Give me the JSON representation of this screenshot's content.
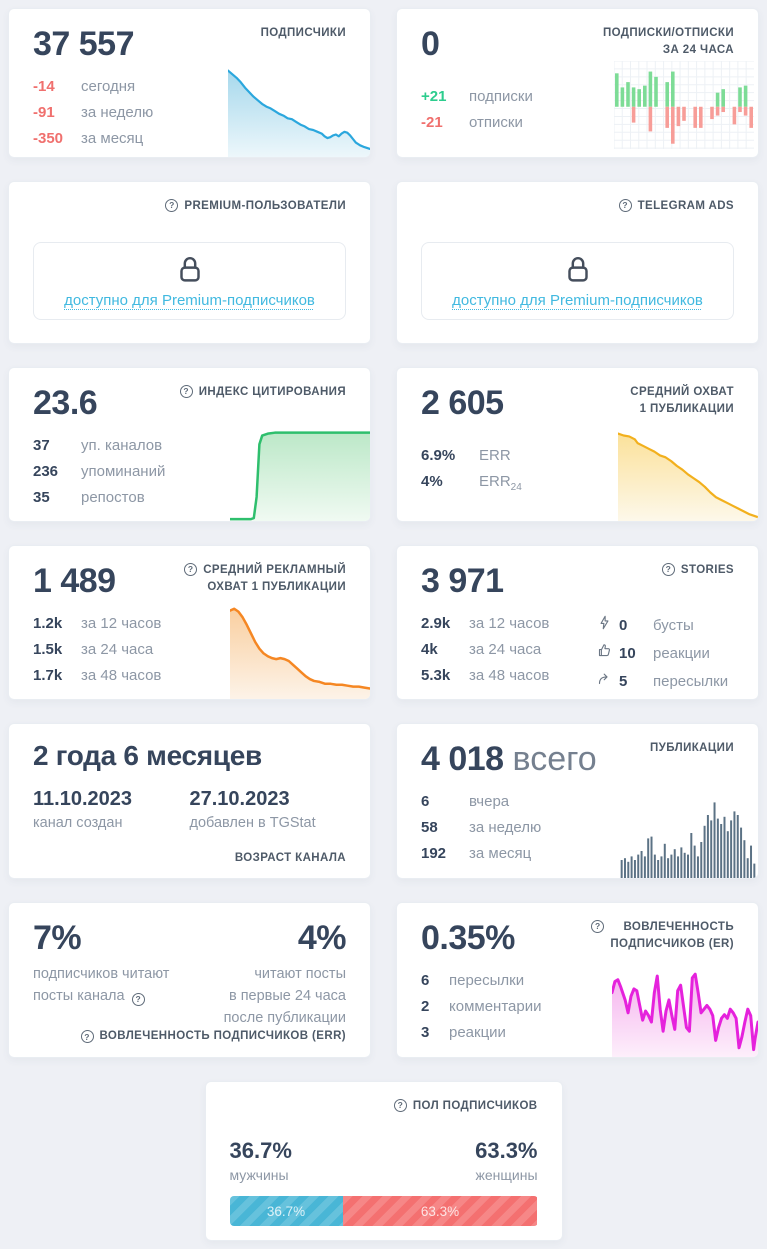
{
  "cards": {
    "subscribers": {
      "title": "ПОДПИСЧИКИ",
      "value": "37 557",
      "stats": [
        {
          "value": "-14",
          "label": "сегодня"
        },
        {
          "value": "-91",
          "label": "за неделю"
        },
        {
          "value": "-350",
          "label": "за месяц"
        }
      ],
      "chart": {
        "type": "area",
        "line": "#2ba7dd",
        "stroke": 2.2,
        "fill_top": "#a6d8ec",
        "fill_bottom": "#edf7fb",
        "points": [
          [
            0,
            4
          ],
          [
            3,
            8
          ],
          [
            6,
            12
          ],
          [
            9,
            17
          ],
          [
            12,
            23
          ],
          [
            15,
            28
          ],
          [
            18,
            33
          ],
          [
            21,
            37
          ],
          [
            24,
            41
          ],
          [
            27,
            44
          ],
          [
            30,
            46
          ],
          [
            33,
            49
          ],
          [
            36,
            52
          ],
          [
            39,
            54
          ],
          [
            42,
            57
          ],
          [
            45,
            58
          ],
          [
            48,
            61
          ],
          [
            51,
            64
          ],
          [
            54,
            66
          ],
          [
            57,
            69
          ],
          [
            60,
            70
          ],
          [
            63,
            72
          ],
          [
            66,
            74
          ],
          [
            68,
            77
          ],
          [
            70,
            79
          ],
          [
            72,
            78
          ],
          [
            74,
            76
          ],
          [
            76,
            75
          ],
          [
            78,
            77
          ],
          [
            80,
            74
          ],
          [
            82,
            72
          ],
          [
            84,
            73
          ],
          [
            86,
            76
          ],
          [
            88,
            80
          ],
          [
            90,
            84
          ],
          [
            93,
            87
          ],
          [
            96,
            89
          ],
          [
            100,
            91
          ]
        ]
      }
    },
    "subs_unsubs": {
      "title_line1": "ПОДПИСКИ/ОТПИСКИ",
      "title_line2": "ЗА 24 ЧАСА",
      "value": "0",
      "stats": [
        {
          "value": "+21",
          "label": "подписки"
        },
        {
          "value": "-21",
          "label": "отписки"
        }
      ],
      "chart": {
        "type": "updown",
        "baseline": 52,
        "up_color": "#7ddc96",
        "down_color": "#f79d98",
        "grid_color": "#edf1f5",
        "bars": [
          [
            38,
            0
          ],
          [
            22,
            0
          ],
          [
            28,
            0
          ],
          [
            22,
            18
          ],
          [
            20,
            0
          ],
          [
            24,
            0
          ],
          [
            40,
            28
          ],
          [
            34,
            0
          ],
          [
            0,
            0
          ],
          [
            28,
            24
          ],
          [
            40,
            42
          ],
          [
            0,
            22
          ],
          [
            0,
            16
          ],
          [
            0,
            0
          ],
          [
            0,
            24
          ],
          [
            0,
            24
          ],
          [
            0,
            0
          ],
          [
            0,
            14
          ],
          [
            16,
            10
          ],
          [
            20,
            6
          ],
          [
            0,
            0
          ],
          [
            0,
            20
          ],
          [
            22,
            6
          ],
          [
            24,
            10
          ],
          [
            0,
            24
          ]
        ]
      }
    },
    "premium_users": {
      "title": "PREMIUM-ПОЛЬЗОВАТЕЛИ",
      "link": "доступно для Premium-подписчиков"
    },
    "telegram_ads": {
      "title": "TELEGRAM ADS",
      "link": "доступно для Premium-подписчиков"
    },
    "citation_index": {
      "title": "ИНДЕКС ЦИТИРОВАНИЯ",
      "value": "23.6",
      "stats": [
        {
          "value": "37",
          "label": "уп. каналов"
        },
        {
          "value": "236",
          "label": "упоминаний"
        },
        {
          "value": "35",
          "label": "репостов"
        }
      ],
      "chart": {
        "type": "area",
        "line": "#2ebf6d",
        "stroke": 2.5,
        "fill_top": "#bce8c8",
        "fill_bottom": "#f0faf2",
        "points": [
          [
            0,
            98
          ],
          [
            15,
            98
          ],
          [
            17,
            97
          ],
          [
            19,
            75
          ],
          [
            21,
            20
          ],
          [
            23,
            11
          ],
          [
            27,
            9
          ],
          [
            32,
            8
          ],
          [
            100,
            8
          ]
        ]
      }
    },
    "avg_reach": {
      "title_line1": "СРЕДНИЙ ОХВАТ",
      "title_line2": "1 ПУБЛИКАЦИИ",
      "value": "2 605",
      "stats": [
        {
          "value": "6.9%",
          "label": "ERR",
          "sub": ""
        },
        {
          "value": "4%",
          "label": "ERR",
          "sub": "24"
        }
      ],
      "chart": {
        "type": "area",
        "line": "#f2b01d",
        "stroke": 2.2,
        "fill_top": "#fbe19a",
        "fill_bottom": "#fdf8ea",
        "points": [
          [
            0,
            8
          ],
          [
            4,
            10
          ],
          [
            8,
            11
          ],
          [
            12,
            14
          ],
          [
            14,
            18
          ],
          [
            18,
            21
          ],
          [
            22,
            24
          ],
          [
            26,
            27
          ],
          [
            30,
            31
          ],
          [
            34,
            33
          ],
          [
            38,
            37
          ],
          [
            42,
            42
          ],
          [
            46,
            46
          ],
          [
            50,
            51
          ],
          [
            54,
            55
          ],
          [
            58,
            59
          ],
          [
            62,
            64
          ],
          [
            66,
            70
          ],
          [
            70,
            75
          ],
          [
            74,
            78
          ],
          [
            78,
            81
          ],
          [
            82,
            84
          ],
          [
            86,
            87
          ],
          [
            90,
            90
          ],
          [
            94,
            93
          ],
          [
            100,
            96
          ]
        ]
      }
    },
    "avg_ad_reach": {
      "title_line1": "СРЕДНИЙ РЕКЛАМНЫЙ",
      "title_line2": "ОХВАТ 1 ПУБЛИКАЦИИ",
      "value": "1 489",
      "stats": [
        {
          "value": "1.2k",
          "label": "за 12 часов"
        },
        {
          "value": "1.5k",
          "label": "за 24 часа"
        },
        {
          "value": "1.7k",
          "label": "за 48 часов"
        }
      ],
      "chart": {
        "type": "area",
        "line": "#f58723",
        "stroke": 2.5,
        "fill_top": "#f9cfa0",
        "fill_bottom": "#fdf3e8",
        "points": [
          [
            0,
            7
          ],
          [
            3,
            5
          ],
          [
            6,
            8
          ],
          [
            9,
            14
          ],
          [
            12,
            22
          ],
          [
            15,
            31
          ],
          [
            18,
            40
          ],
          [
            21,
            47
          ],
          [
            24,
            52
          ],
          [
            27,
            55
          ],
          [
            30,
            57
          ],
          [
            33,
            58
          ],
          [
            36,
            57
          ],
          [
            39,
            58
          ],
          [
            42,
            60
          ],
          [
            45,
            64
          ],
          [
            48,
            68
          ],
          [
            51,
            72
          ],
          [
            54,
            76
          ],
          [
            57,
            79
          ],
          [
            60,
            81
          ],
          [
            64,
            82
          ],
          [
            68,
            84
          ],
          [
            72,
            84
          ],
          [
            76,
            85
          ],
          [
            80,
            85
          ],
          [
            84,
            86
          ],
          [
            88,
            87
          ],
          [
            92,
            87
          ],
          [
            96,
            88
          ],
          [
            100,
            89
          ]
        ]
      }
    },
    "stories": {
      "title": "STORIES",
      "value": "3 971",
      "stats_left": [
        {
          "value": "2.9k",
          "label": "за 12 часов"
        },
        {
          "value": "4k",
          "label": "за 24 часа"
        },
        {
          "value": "5.3k",
          "label": "за 48 часов"
        }
      ],
      "stats_right": [
        {
          "icon": "boost-icon",
          "value": "0",
          "label": "бусты"
        },
        {
          "icon": "thumb-up-icon",
          "value": "10",
          "label": "реакции"
        },
        {
          "icon": "forward-icon",
          "value": "5",
          "label": "пересылки"
        }
      ]
    },
    "channel_age": {
      "value": "2 года 6 месяцев",
      "created_date": "11.10.2023",
      "created_label": "канал создан",
      "added_date": "27.10.2023",
      "added_label": "добавлен в TGStat",
      "footer": "ВОЗРАСТ КАНАЛА"
    },
    "publications": {
      "title": "ПУБЛИКАЦИИ",
      "value": "4 018",
      "value_suffix": "всего",
      "stats": [
        {
          "value": "6",
          "label": "вчера"
        },
        {
          "value": "58",
          "label": "за неделю"
        },
        {
          "value": "192",
          "label": "за месяц"
        }
      ],
      "chart": {
        "type": "bars",
        "color": "#5b7285",
        "values": [
          20,
          22,
          18,
          24,
          20,
          26,
          30,
          24,
          44,
          46,
          26,
          20,
          24,
          38,
          22,
          26,
          32,
          24,
          34,
          28,
          26,
          50,
          36,
          24,
          40,
          58,
          70,
          64,
          84,
          66,
          60,
          68,
          52,
          64,
          74,
          70,
          56,
          42,
          22,
          36,
          16
        ]
      }
    },
    "err": {
      "left_value": "7%",
      "left_label_line1": "подписчиков читают",
      "left_label_line2": "посты канала",
      "right_value": "4%",
      "right_label_lines": [
        "читают посты",
        "в первые 24 часа",
        "после публикации"
      ],
      "footer": "ВОВЛЕЧЕННОСТЬ ПОДПИСЧИКОВ (ERR)"
    },
    "er": {
      "title_line1": "ВОВЛЕЧЕННОСТЬ",
      "title_line2": "ПОДПИСЧИКОВ (ER)",
      "value": "0.35%",
      "stats": [
        {
          "value": "6",
          "label": "пересылки"
        },
        {
          "value": "2",
          "label": "комментарии"
        },
        {
          "value": "3",
          "label": "реакции"
        }
      ],
      "chart": {
        "type": "area",
        "line": "#e522dc",
        "stroke": 3,
        "fill_top": "#f5b2ee",
        "fill_bottom": "#fdeffb",
        "points": [
          [
            0,
            30
          ],
          [
            2,
            18
          ],
          [
            4,
            16
          ],
          [
            6,
            24
          ],
          [
            9,
            38
          ],
          [
            11,
            52
          ],
          [
            13,
            34
          ],
          [
            15,
            26
          ],
          [
            17,
            28
          ],
          [
            19,
            44
          ],
          [
            21,
            60
          ],
          [
            23,
            50
          ],
          [
            25,
            55
          ],
          [
            27,
            62
          ],
          [
            29,
            30
          ],
          [
            31,
            12
          ],
          [
            33,
            48
          ],
          [
            35,
            72
          ],
          [
            37,
            50
          ],
          [
            39,
            38
          ],
          [
            41,
            55
          ],
          [
            43,
            70
          ],
          [
            45,
            28
          ],
          [
            47,
            22
          ],
          [
            49,
            45
          ],
          [
            51,
            68
          ],
          [
            53,
            72
          ],
          [
            55,
            14
          ],
          [
            57,
            10
          ],
          [
            59,
            30
          ],
          [
            61,
            52
          ],
          [
            63,
            48
          ],
          [
            65,
            44
          ],
          [
            67,
            48
          ],
          [
            69,
            55
          ],
          [
            71,
            82
          ],
          [
            73,
            68
          ],
          [
            75,
            58
          ],
          [
            77,
            54
          ],
          [
            79,
            58
          ],
          [
            81,
            48
          ],
          [
            83,
            52
          ],
          [
            85,
            58
          ],
          [
            87,
            90
          ],
          [
            89,
            78
          ],
          [
            91,
            62
          ],
          [
            93,
            48
          ],
          [
            95,
            55
          ],
          [
            97,
            92
          ],
          [
            98,
            80
          ],
          [
            100,
            62
          ]
        ]
      }
    },
    "gender": {
      "title": "ПОЛ ПОДПИСЧИКОВ",
      "male_value": "36.7%",
      "male_label": "мужчины",
      "female_value": "63.3%",
      "female_label": "женщины",
      "male_pct": 36.7,
      "female_pct": 63.3,
      "bar_male_label": "36.7%",
      "bar_female_label": "63.3%",
      "male_color": "#49b6d6",
      "female_color": "#f47070"
    }
  }
}
